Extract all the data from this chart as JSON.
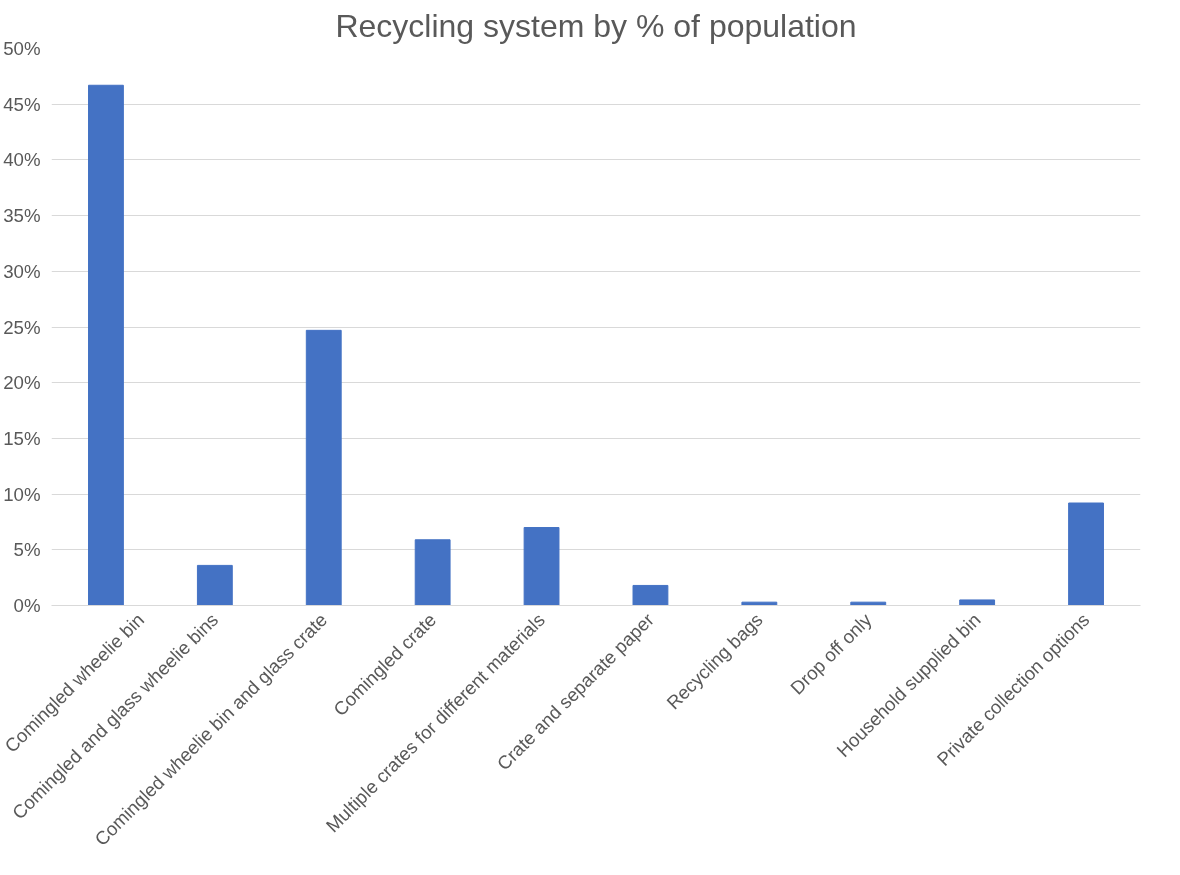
{
  "chart_data": {
    "type": "bar",
    "title": "Recycling system by % of population",
    "categories": [
      "Comingled wheelie bin",
      "Comingled and glass wheelie bins",
      "Comingled wheelie bin and glass crate",
      "Comingled crate",
      "Multiple crates for different materials",
      "Crate and separate paper",
      "Recycling bags",
      "Drop off only",
      "Household supplied bin",
      "Private collection options"
    ],
    "values": [
      46.7,
      3.6,
      24.7,
      5.9,
      7.0,
      1.8,
      0.3,
      0.3,
      0.5,
      9.2
    ],
    "color": "#4472c4",
    "ylim": [
      0,
      50
    ],
    "yticks": [
      {
        "value": 0,
        "label": "0%"
      },
      {
        "value": 5,
        "label": "5%"
      },
      {
        "value": 10,
        "label": "10%"
      },
      {
        "value": 15,
        "label": "15%"
      },
      {
        "value": 20,
        "label": "20%"
      },
      {
        "value": 25,
        "label": "25%"
      },
      {
        "value": 30,
        "label": "30%"
      },
      {
        "value": 35,
        "label": "35%"
      },
      {
        "value": 40,
        "label": "40%"
      },
      {
        "value": 45,
        "label": "45%"
      },
      {
        "value": 50,
        "label": "50%"
      }
    ],
    "grid": "y"
  }
}
